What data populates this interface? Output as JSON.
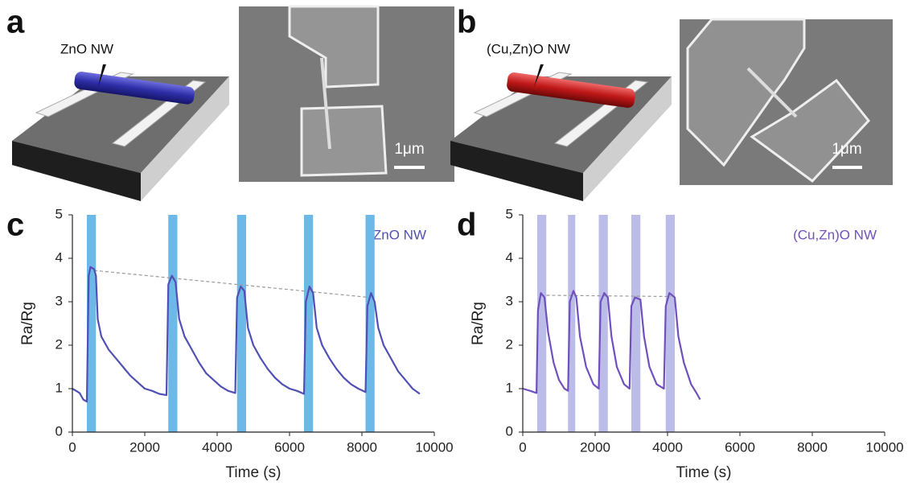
{
  "panels": {
    "a": {
      "label": "a",
      "annotation": "ZnO NW",
      "scale_bar": "1μm"
    },
    "b": {
      "label": "b",
      "annotation": "(Cu,Zn)O NW",
      "scale_bar": "1μm"
    }
  },
  "chart_data": [
    {
      "type": "line",
      "label": "c",
      "annotation": "ZnO NW",
      "xlabel": "Time (s)",
      "ylabel": "Ra/Rg",
      "color": "#5050b4",
      "highlight_color": "#6cb8e6",
      "x": [
        0,
        100,
        200,
        300,
        400,
        450,
        500,
        600,
        650,
        700,
        800,
        1000,
        1200,
        1400,
        1600,
        1800,
        2000,
        2200,
        2400,
        2600,
        2650,
        2750,
        2850,
        2950,
        3100,
        3300,
        3500,
        3700,
        3900,
        4100,
        4300,
        4500,
        4550,
        4650,
        4750,
        4850,
        5000,
        5200,
        5400,
        5600,
        5800,
        6000,
        6200,
        6400,
        6450,
        6550,
        6650,
        6750,
        6900,
        7100,
        7300,
        7500,
        7700,
        7900,
        8100,
        8150,
        8250,
        8350,
        8450,
        8600,
        8800,
        9000,
        9200,
        9400,
        9600
      ],
      "values": [
        1.0,
        0.95,
        0.9,
        0.75,
        0.7,
        3.6,
        3.8,
        3.75,
        3.6,
        2.6,
        2.2,
        1.9,
        1.7,
        1.5,
        1.3,
        1.15,
        1.0,
        0.95,
        0.88,
        0.85,
        3.4,
        3.6,
        3.45,
        2.6,
        2.2,
        1.9,
        1.6,
        1.35,
        1.2,
        1.05,
        0.95,
        0.9,
        3.1,
        3.35,
        3.25,
        2.4,
        2.0,
        1.7,
        1.45,
        1.25,
        1.1,
        1.0,
        0.95,
        0.88,
        3.0,
        3.35,
        3.2,
        2.4,
        2.0,
        1.7,
        1.45,
        1.25,
        1.1,
        1.0,
        0.92,
        2.9,
        3.2,
        3.0,
        2.4,
        2.0,
        1.7,
        1.4,
        1.2,
        1.0,
        0.88
      ],
      "highlights": [
        [
          400,
          650
        ],
        [
          2650,
          2900
        ],
        [
          4550,
          4800
        ],
        [
          6400,
          6650
        ],
        [
          8100,
          8350
        ]
      ],
      "trend": {
        "x": [
          600,
          8200
        ],
        "y": [
          3.72,
          3.1
        ]
      },
      "xlim": [
        0,
        10000
      ],
      "xticks": [
        0,
        2000,
        4000,
        6000,
        8000,
        10000
      ],
      "ylim": [
        0,
        5
      ],
      "yticks": [
        0,
        1,
        2,
        3,
        4,
        5
      ]
    },
    {
      "type": "line",
      "label": "d",
      "annotation": "(Cu,Zn)O NW",
      "xlabel": "Time (s)",
      "ylabel": "Ra/Rg",
      "color": "#7050bc",
      "highlight_color": "#bcbce8",
      "x": [
        0,
        200,
        380,
        420,
        500,
        600,
        700,
        850,
        1000,
        1150,
        1250,
        1300,
        1400,
        1480,
        1580,
        1750,
        1950,
        2100,
        2150,
        2250,
        2350,
        2450,
        2600,
        2800,
        2950,
        3000,
        3100,
        3250,
        3350,
        3500,
        3700,
        3900,
        3950,
        4050,
        4200,
        4300,
        4450,
        4650,
        4800,
        4900
      ],
      "values": [
        1.0,
        0.95,
        0.9,
        2.8,
        3.2,
        3.1,
        2.3,
        1.6,
        1.2,
        1.0,
        0.95,
        3.0,
        3.25,
        3.1,
        2.2,
        1.5,
        1.1,
        1.0,
        3.0,
        3.2,
        3.1,
        2.2,
        1.5,
        1.1,
        1.0,
        2.9,
        3.1,
        3.05,
        2.2,
        1.5,
        1.1,
        1.0,
        2.9,
        3.2,
        3.1,
        2.2,
        1.6,
        1.1,
        0.9,
        0.75
      ],
      "highlights": [
        [
          400,
          650
        ],
        [
          1250,
          1450
        ],
        [
          2100,
          2350
        ],
        [
          3000,
          3250
        ],
        [
          3950,
          4200
        ]
      ],
      "trend": {
        "x": [
          500,
          4100
        ],
        "y": [
          3.15,
          3.12
        ]
      },
      "xlim": [
        0,
        10000
      ],
      "xticks": [
        0,
        2000,
        4000,
        6000,
        8000,
        10000
      ],
      "ylim": [
        0,
        5
      ],
      "yticks": [
        0,
        1,
        2,
        3,
        4,
        5
      ]
    }
  ]
}
